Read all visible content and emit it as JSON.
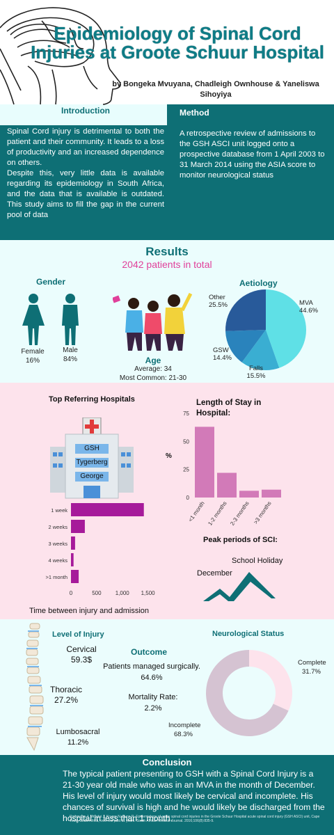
{
  "header": {
    "title": "Epidemiology of Spinal Cord Injuries at Groote Schuur Hospital",
    "authors": "by Bongeka Mvuyana, Chadleigh Ownhouse & Yaneliswa Sihoyiya"
  },
  "intro": {
    "heading": "Introduction",
    "p1": "Spinal Cord injury is detrimental to both the patient and their community. It leads to a loss of productivity and an increased dependence on others.",
    "p2": "Despite this, very little data is available regarding its epidemiology in South Africa, and the data that is available is outdated. This study aims to fill the gap in the current pool of data"
  },
  "method": {
    "heading": "Method",
    "text": "A retrospective review of admissions to the GSH ASCI unit logged onto a prospective database from 1 April 2003 to 31 March 2014 using the ASIA score to monitor neurological status"
  },
  "results": {
    "heading": "Results",
    "total": "2042 patients in total",
    "gender_heading": "Gender",
    "female_label": "Female",
    "female_pct": "16%",
    "male_label": "Male",
    "male_pct": "84%",
    "age_heading": "Age",
    "age_average": "Average: 34",
    "age_common": "Most Common: 21-30",
    "aetiology_heading": "Aetiology"
  },
  "hospitals": {
    "heading": "Top Referring Hospitals",
    "names": [
      "GSH",
      "Tygerberg",
      "George"
    ]
  },
  "time_caption": "Time between injury and admission",
  "peak": {
    "heading": "Peak periods of SCI:",
    "school": "School Holiday",
    "december": "December"
  },
  "level": {
    "heading": "Level of Injury",
    "cervical_label": "Cervical",
    "cervical_value": "59.3$",
    "thoracic_label": "Thoracic",
    "thoracic_value": "27.2%",
    "lumbosacral_label": "Lumbosacral",
    "lumbosacral_value": "11.2%"
  },
  "outcome": {
    "heading": "Outcome",
    "surgical_label": "Patients managed surgically.",
    "surgical_value": "64.6%",
    "mortality_label": "Mortality Rate:",
    "mortality_value": "2.2%"
  },
  "neuro": {
    "heading": "Neurological Status"
  },
  "conclusion": {
    "heading": "Conclusion",
    "text": "The typical patient presenting to GSH with a Spinal Cord Injury is a 21-30 year old male who was in an MVA in the month of December.  His level of injury would most likely be cervical and incomplete. His chances of survival is high and he would likely be discharged from the hospital in less than 1 month.",
    "reference": "Rothmann J, Mnadai J, Kruger N, Dunn R. Epidemiology of acute spinal cord injuries in the Groote Schuur Hospital acute spinal cord injury (GSH ASCI) unit, Cape Town, South Africa, over the past 11 years. South African Medical Journal. 2016;106(8):835-9."
  },
  "colors": {
    "teal": "#0e6f75",
    "pink_bar": "#d27ab8",
    "purple_bar": "#a61a9a",
    "pie_mva": "#5fe0e6",
    "pie_falls": "#3aaed2",
    "pie_gsw": "#2a83bc",
    "pie_other": "#285a9a",
    "donut_complete": "#fde3ec",
    "donut_incomplete": "#d5c3d2"
  },
  "chart_data": [
    {
      "type": "pie",
      "title": "Aetiology",
      "categories": [
        "MVA",
        "Falls",
        "GSW",
        "Other"
      ],
      "values": [
        44.6,
        15.5,
        14.4,
        25.5
      ],
      "labels": [
        "44.6%",
        "15.5%",
        "14.4%",
        "25.5%"
      ]
    },
    {
      "type": "bar",
      "title": "Length of Stay in Hospital:",
      "categories": [
        "<1 month",
        "1-2 months",
        "2-3 months",
        ">3 months"
      ],
      "values": [
        63,
        22,
        6,
        7
      ],
      "ylabel": "%",
      "ylim": [
        0,
        75
      ],
      "yticks": [
        0,
        25,
        50,
        75
      ]
    },
    {
      "type": "bar",
      "orientation": "horizontal",
      "title": "Time between injury and admission",
      "categories": [
        "1 week",
        "2 weeks",
        "3 weeks",
        "4 weeks",
        ">1 month"
      ],
      "values": [
        1420,
        270,
        80,
        50,
        150
      ],
      "xlim": [
        0,
        1600
      ],
      "xticks": [
        0,
        500,
        1000,
        1500
      ],
      "xtick_labels": [
        "0",
        "500",
        "1,000",
        "1,500"
      ]
    },
    {
      "type": "pie",
      "title": "Neurological Status",
      "categories": [
        "Complete",
        "Incomplete"
      ],
      "values": [
        31.7,
        68.3
      ],
      "labels": [
        "31.7%",
        "68.3%"
      ]
    }
  ]
}
